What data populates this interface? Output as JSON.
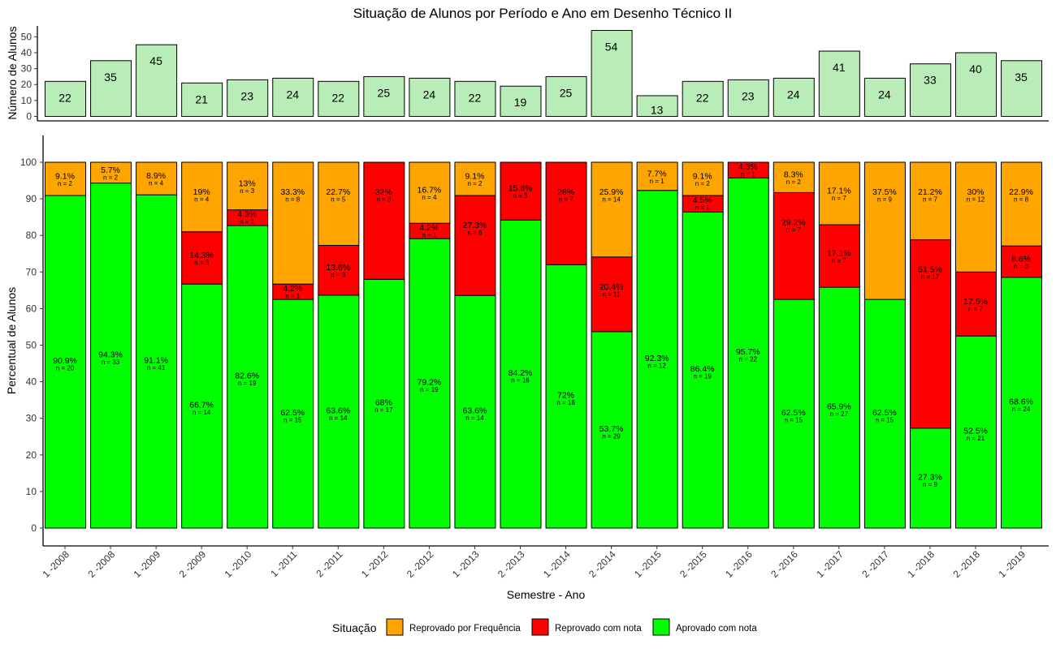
{
  "chart_data": {
    "title": "Situação de Alunos por Período e Ano em Desenho Técnico II",
    "top": {
      "type": "bar",
      "ylabel": "Número de Alunos",
      "ylim": [
        0,
        54
      ],
      "yticks": [
        0,
        10,
        20,
        30,
        40,
        50
      ],
      "color": "#b8edb8"
    },
    "bottom": {
      "type": "bar",
      "stacked": true,
      "xlabel": "Semestre - Ano",
      "ylabel": "Percentual de Alunos",
      "ylim": [
        0,
        100
      ],
      "yticks": [
        0,
        10,
        20,
        30,
        40,
        50,
        60,
        70,
        80,
        90,
        100
      ]
    },
    "categories": [
      "1 -2008",
      "2 -2008",
      "1 -2009",
      "2 -2009",
      "1 -2010",
      "1 -2011",
      "2 -2011",
      "1 -2012",
      "2 -2012",
      "1 -2013",
      "2 -2013",
      "1 -2014",
      "2 -2014",
      "1 -2015",
      "2 -2015",
      "1 -2016",
      "2 -2016",
      "1 -2017",
      "2 -2017",
      "1 -2018",
      "2 -2018",
      "1 -2019"
    ],
    "totals": [
      22,
      35,
      45,
      21,
      23,
      24,
      22,
      25,
      24,
      22,
      19,
      25,
      54,
      13,
      22,
      23,
      24,
      41,
      24,
      33,
      40,
      35
    ],
    "series": [
      {
        "name": "Aprovado com nota",
        "color": "#00ff00",
        "values": [
          90.9,
          94.3,
          91.1,
          66.7,
          82.6,
          62.5,
          63.6,
          68,
          79.2,
          63.6,
          84.2,
          72,
          53.7,
          92.3,
          86.4,
          95.7,
          62.5,
          65.9,
          62.5,
          27.3,
          52.5,
          68.6
        ],
        "labels": [
          "90.9%",
          "94.3%",
          "91.1%",
          "66.7%",
          "82.6%",
          "62.5%",
          "63.6%",
          "68%",
          "79.2%",
          "63.6%",
          "84.2%",
          "72%",
          "53.7%",
          "92.3%",
          "86.4%",
          "95.7%",
          "62.5%",
          "65.9%",
          "62.5%",
          "27.3%",
          "52.5%",
          "68.6%"
        ],
        "counts": [
          "n = 20",
          "n = 33",
          "n = 41",
          "n = 14",
          "n = 19",
          "n = 15",
          "n = 14",
          "n = 17",
          "n = 19",
          "n = 14",
          "n = 16",
          "n = 18",
          "n = 29",
          "n = 12",
          "n = 19",
          "n = 22",
          "n = 15",
          "n = 27",
          "n = 15",
          "n = 9",
          "n = 21",
          "n = 24"
        ]
      },
      {
        "name": "Reprovado com nota",
        "color": "#ff0000",
        "values": [
          0,
          0,
          0,
          14.3,
          4.3,
          4.2,
          13.6,
          32,
          4.2,
          27.3,
          15.8,
          28,
          20.4,
          0,
          4.5,
          4.3,
          29.2,
          17.1,
          0,
          51.5,
          17.5,
          8.6
        ],
        "labels": [
          "",
          "",
          "",
          "14.3%",
          "4.3%",
          "4.2%",
          "13.6%",
          "32%",
          "4.2%",
          "27.3%",
          "15.8%",
          "28%",
          "20.4%",
          "",
          "4.5%",
          "4.3%",
          "29.2%",
          "17.1%",
          "",
          "51.5%",
          "17.5%",
          "8.6%"
        ],
        "counts": [
          "",
          "",
          "",
          "n = 3",
          "n = 1",
          "n = 1",
          "n = 3",
          "n = 8",
          "n = 1",
          "n = 6",
          "n = 3",
          "n = 7",
          "n = 11",
          "",
          "n = 1",
          "n = 1",
          "n = 7",
          "n = 7",
          "",
          "n = 17",
          "n = 7",
          "n = 3"
        ]
      },
      {
        "name": "Reprovado por Frequência",
        "color": "#ffa500",
        "values": [
          9.1,
          5.7,
          8.9,
          19,
          13,
          33.3,
          22.7,
          0,
          16.7,
          9.1,
          0,
          0,
          25.9,
          7.7,
          9.1,
          0,
          8.3,
          17.1,
          37.5,
          21.2,
          30,
          22.9
        ],
        "labels": [
          "9.1%",
          "5.7%",
          "8.9%",
          "19%",
          "13%",
          "33.3%",
          "22.7%",
          "",
          "16.7%",
          "9.1%",
          "",
          "",
          "25.9%",
          "7.7%",
          "9.1%",
          "",
          "8.3%",
          "17.1%",
          "37.5%",
          "21.2%",
          "30%",
          "22.9%"
        ],
        "counts": [
          "n = 2",
          "n = 2",
          "n = 4",
          "n = 4",
          "n = 3",
          "n = 8",
          "n = 5",
          "",
          "n = 4",
          "n = 2",
          "",
          "",
          "n = 14",
          "n = 1",
          "n = 2",
          "",
          "n = 2",
          "n = 7",
          "n = 9",
          "n = 7",
          "n = 12",
          "n = 8"
        ]
      }
    ],
    "legend": {
      "title": "Situação",
      "position": "bottom",
      "items": [
        {
          "label": "Reprovado por Frequência",
          "color": "#ffa500"
        },
        {
          "label": "Reprovado com nota",
          "color": "#ff0000"
        },
        {
          "label": "Aprovado com nota",
          "color": "#00ff00"
        }
      ]
    },
    "grid": false
  }
}
